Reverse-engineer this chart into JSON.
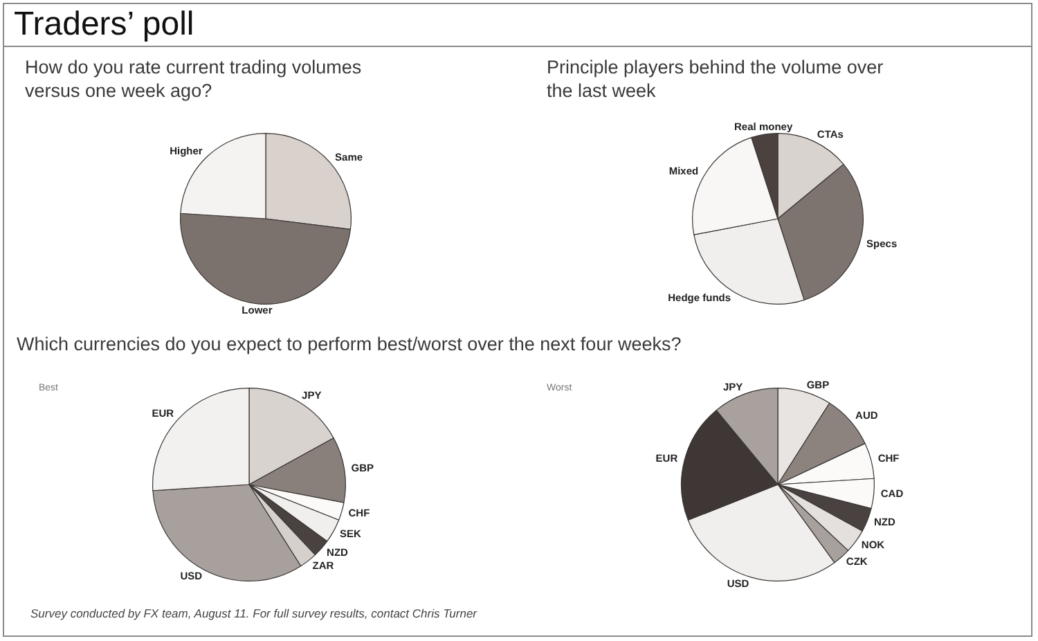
{
  "chart_data": [
    {
      "type": "other",
      "title": "Traders’ poll"
    },
    {
      "type": "pie",
      "title": "How do you rate current trading volumes versus one week ago?",
      "categories": [
        "Same",
        "Lower",
        "Higher"
      ],
      "values": [
        27,
        49,
        24
      ],
      "colors": [
        "#d8d1cc",
        "#7b716d",
        "#f5f3f1"
      ]
    },
    {
      "type": "pie",
      "title": "Principle players behind the volume over the last week",
      "categories": [
        "CTAs",
        "Specs",
        "Hedge funds",
        "Mixed",
        "Real money"
      ],
      "values": [
        14,
        31,
        27,
        23,
        5
      ],
      "colors": [
        "#d9d3cf",
        "#7d7470",
        "#f1efed",
        "#f8f7f5",
        "#4b4240"
      ]
    },
    {
      "type": "pie",
      "title": "Which currencies do you expect to perform best/worst over the next four weeks?",
      "subtitle": "Best",
      "categories": [
        "JPY",
        "GBP",
        "CHF",
        "SEK",
        "NZD",
        "ZAR",
        "USD",
        "EUR"
      ],
      "values": [
        17,
        11,
        3,
        4,
        3,
        3,
        33,
        26
      ],
      "colors": [
        "#d9d3cf",
        "#89807c",
        "#fbfaf9",
        "#f1efed",
        "#4a4240",
        "#d6d0cc",
        "#a8a09c",
        "#f3f1ef"
      ]
    },
    {
      "type": "pie",
      "subtitle": "Worst",
      "categories": [
        "GBP",
        "AUD",
        "CHF",
        "CAD",
        "NZD",
        "NOK",
        "CZK",
        "USD",
        "EUR",
        "JPY"
      ],
      "values": [
        9,
        9,
        6,
        5,
        4,
        4,
        3,
        29,
        20,
        11
      ],
      "colors": [
        "#e8e4e1",
        "#8c827e",
        "#fbfaf9",
        "#fbfaf9",
        "#4a4240",
        "#e4e0dd",
        "#a8a09c",
        "#f1efed",
        "#3f3735",
        "#a9a19d"
      ]
    },
    {
      "type": "other",
      "annotations": [
        "Survey conducted by FX team, August 11. For full survey results, contact Chris Turner"
      ]
    }
  ]
}
